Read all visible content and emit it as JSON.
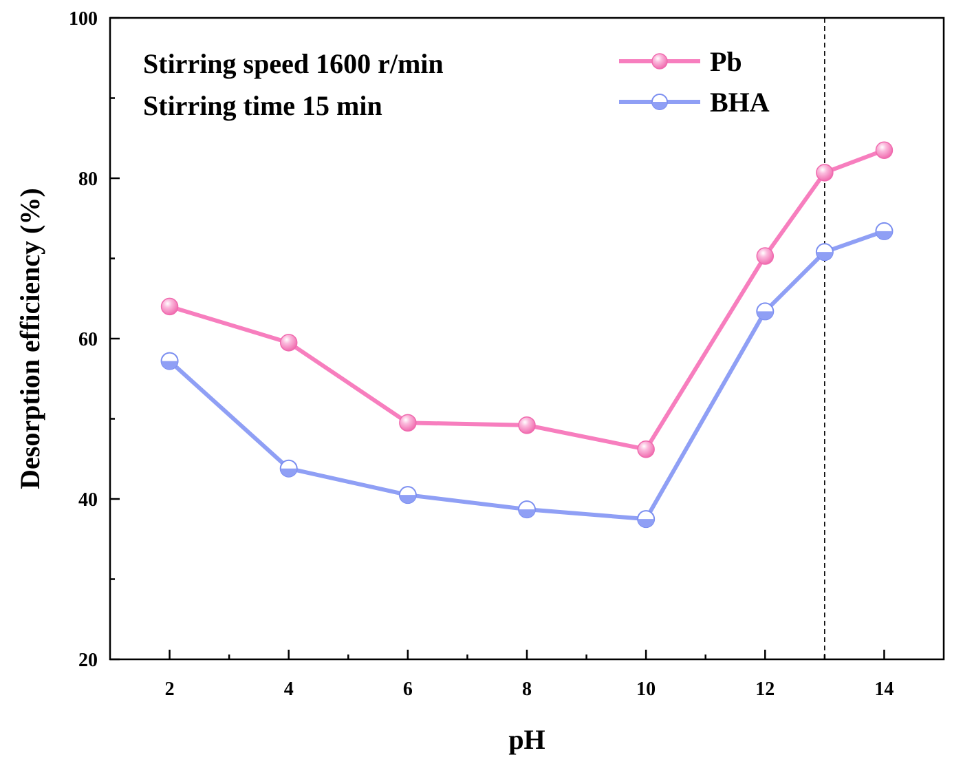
{
  "chart_data": {
    "type": "line",
    "title": "",
    "xlabel": "pH",
    "ylabel": "Desorption efficiency (%)",
    "x": [
      2,
      4,
      6,
      8,
      10,
      12,
      13,
      14
    ],
    "xlim": [
      1,
      15
    ],
    "ylim": [
      20,
      100
    ],
    "x_ticks": [
      "2",
      "4",
      "6",
      "8",
      "10",
      "12",
      "14"
    ],
    "y_ticks": [
      "20",
      "40",
      "60",
      "80",
      "100"
    ],
    "series": [
      {
        "name": "Pb",
        "color": "#f77ebe",
        "marker": "filled-sphere",
        "values": [
          64.0,
          59.5,
          49.5,
          49.2,
          46.2,
          70.3,
          80.7,
          83.5
        ]
      },
      {
        "name": "BHA",
        "color": "#8f9ff5",
        "marker": "half-filled-circle",
        "values": [
          57.2,
          43.8,
          40.5,
          38.7,
          37.5,
          63.4,
          70.8,
          73.4
        ]
      }
    ],
    "annotations": [
      "Stirring speed 1600 r/min",
      "Stirring time 15 min"
    ],
    "reference_line": {
      "x": 13,
      "style": "dashed"
    },
    "legend_position": "top-right",
    "grid": false
  }
}
